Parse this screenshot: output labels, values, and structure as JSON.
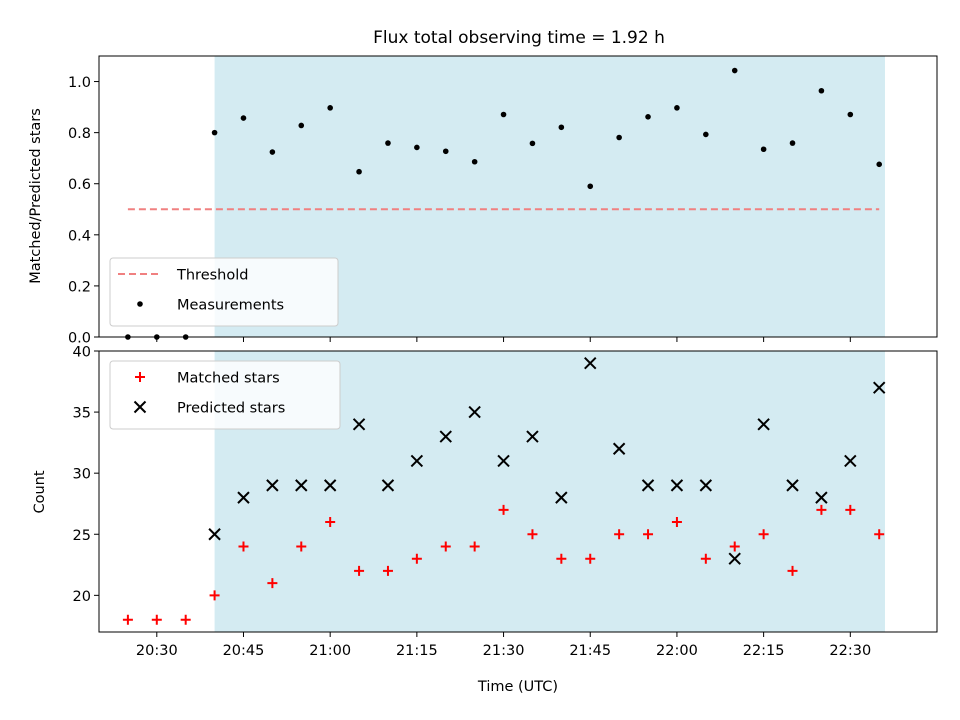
{
  "figure": {
    "title": "Flux total observing time = 1.92 h",
    "xlabel": "Time (UTC)",
    "x_ticks": [
      "20:30",
      "20:45",
      "21:00",
      "21:15",
      "21:30",
      "21:45",
      "22:00",
      "22:15",
      "22:30"
    ],
    "colors": {
      "shade": "#add8e6",
      "threshold": "#f08080",
      "matched": "#ff0000",
      "predicted": "#000000",
      "measurements": "#000000"
    }
  },
  "chart_data": [
    {
      "type": "scatter",
      "title": "Flux total observing time = 1.92 h",
      "xlabel": "",
      "ylabel": "Matched/Predicted stars",
      "xlim": [
        "20:20",
        "22:45"
      ],
      "ylim": [
        0,
        1.1
      ],
      "y_ticks": [
        "0.0",
        "0.2",
        "0.4",
        "0.6",
        "0.8",
        "1.0"
      ],
      "shaded_region": [
        "20:40",
        "22:36"
      ],
      "legend": {
        "position": "lower-left"
      },
      "threshold": {
        "name": "Threshold",
        "value": 0.5,
        "x": [
          "20:25",
          "22:35"
        ]
      },
      "series": [
        {
          "name": "Measurements",
          "x": [
            "20:25",
            "20:30",
            "20:35",
            "20:40",
            "20:45",
            "20:50",
            "20:55",
            "21:00",
            "21:05",
            "21:10",
            "21:15",
            "21:20",
            "21:25",
            "21:30",
            "21:35",
            "21:40",
            "21:45",
            "21:50",
            "21:55",
            "22:00",
            "22:05",
            "22:10",
            "22:15",
            "22:20",
            "22:25",
            "22:30",
            "22:35"
          ],
          "values": [
            0.0,
            0.0,
            0.0,
            0.8,
            0.857,
            0.724,
            0.828,
            0.897,
            0.647,
            0.759,
            0.742,
            0.727,
            0.686,
            0.871,
            0.758,
            0.821,
            0.59,
            0.781,
            0.862,
            0.897,
            0.793,
            1.043,
            0.735,
            0.759,
            0.964,
            0.871,
            0.676
          ]
        }
      ]
    },
    {
      "type": "scatter",
      "xlabel": "Time (UTC)",
      "ylabel": "Count",
      "xlim": [
        "20:20",
        "22:45"
      ],
      "ylim": [
        17,
        40
      ],
      "y_ticks": [
        "20",
        "25",
        "30",
        "35",
        "40"
      ],
      "shaded_region": [
        "20:40",
        "22:36"
      ],
      "legend": {
        "position": "upper-left"
      },
      "series": [
        {
          "name": "Matched stars",
          "marker": "plus",
          "x": [
            "20:25",
            "20:30",
            "20:35",
            "20:40",
            "20:45",
            "20:50",
            "20:55",
            "21:00",
            "21:05",
            "21:10",
            "21:15",
            "21:20",
            "21:25",
            "21:30",
            "21:35",
            "21:40",
            "21:45",
            "21:50",
            "21:55",
            "22:00",
            "22:05",
            "22:10",
            "22:15",
            "22:20",
            "22:25",
            "22:30",
            "22:35"
          ],
          "values": [
            18,
            18,
            18,
            20,
            24,
            21,
            24,
            26,
            22,
            22,
            23,
            24,
            24,
            27,
            25,
            23,
            23,
            25,
            25,
            26,
            23,
            24,
            25,
            22,
            27,
            27,
            25
          ]
        },
        {
          "name": "Predicted stars",
          "marker": "x",
          "x": [
            "20:40",
            "20:45",
            "20:50",
            "20:55",
            "21:00",
            "21:05",
            "21:10",
            "21:15",
            "21:20",
            "21:25",
            "21:30",
            "21:35",
            "21:40",
            "21:45",
            "21:50",
            "21:55",
            "22:00",
            "22:05",
            "22:10",
            "22:15",
            "22:20",
            "22:25",
            "22:30",
            "22:35"
          ],
          "values": [
            25,
            28,
            29,
            29,
            29,
            34,
            29,
            31,
            33,
            35,
            31,
            33,
            28,
            39,
            32,
            29,
            29,
            29,
            23,
            34,
            29,
            28,
            31,
            37
          ]
        }
      ]
    }
  ]
}
